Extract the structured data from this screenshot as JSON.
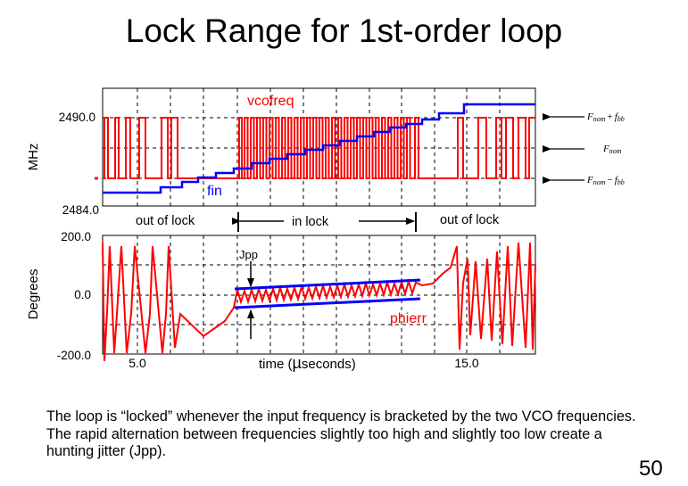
{
  "title": "Lock Range for 1st-order loop",
  "page_number": "50",
  "caption": "The loop is “locked” whenever the input frequency is bracketed by the two VCO frequencies. The rapid alternation between frequencies slightly too high and slightly too low create a hunting jitter (Jpp).",
  "colors": {
    "signal": "#ff0000",
    "input": "#0000ff",
    "bound": "#0000ff",
    "grid": "#000000"
  },
  "top_plot": {
    "ylabel": "MHz",
    "tick_top": "2490.0",
    "tick_bottom": "2484.0",
    "series_vcofreq": "vcofreq",
    "series_fin": "fin",
    "annotations": {
      "upper_prefix": "F",
      "upper_sub": "nom",
      "upper_op": "+",
      "upper_f": "f",
      "upper_fsub": "bb",
      "mid_prefix": "F",
      "mid_sub": "nom",
      "lower_prefix": "F",
      "lower_sub": "nom",
      "lower_op": "−",
      "lower_f": "f",
      "lower_fsub": "bb"
    }
  },
  "regions": {
    "left": "out of lock",
    "middle": "in lock",
    "right": "out of lock"
  },
  "bottom_plot": {
    "ylabel": "Degrees",
    "tick_top": "200.0",
    "tick_mid": "0.0",
    "tick_bottom": "-200.0",
    "xtick_left": "5.0",
    "xtick_right": "15.0",
    "xlabel_pre": "time (",
    "xlabel_mu": "µ",
    "xlabel_post": "seconds)",
    "jitter_label": "Jpp",
    "series_phierr": "phierr"
  }
}
